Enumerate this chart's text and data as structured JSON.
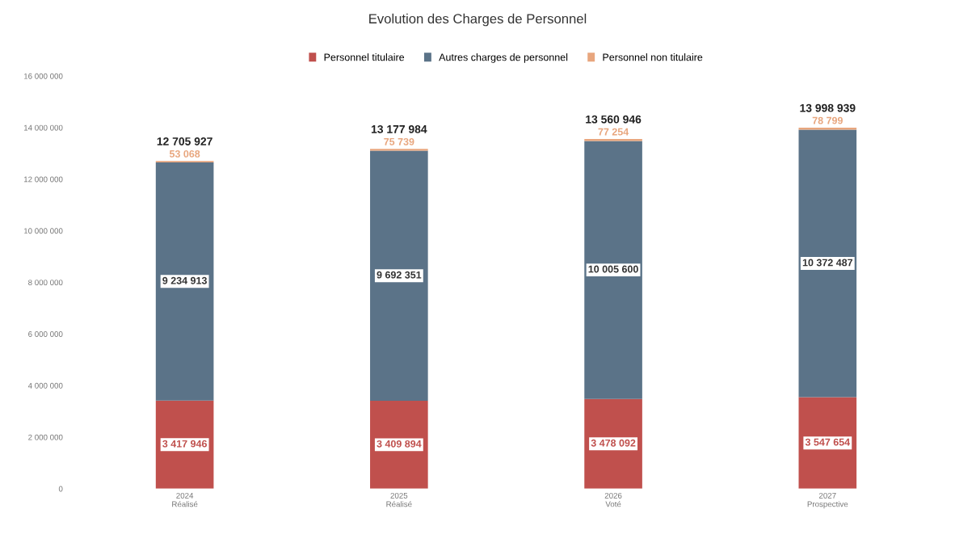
{
  "chart_data": {
    "type": "bar",
    "title": "Evolution des Charges de Personnel",
    "stacked": true,
    "categories": [
      "2024\nRéalisé",
      "2025\nRéalisé",
      "2026\nVoté",
      "2027\nProspective"
    ],
    "series": [
      {
        "name": "Personnel titulaire",
        "color": "#c0504d",
        "values": [
          3417946,
          3409894,
          3478092,
          3547654
        ],
        "value_labels": [
          "3 417 946",
          "3 409 894",
          "3 478 092",
          "3 547 654"
        ]
      },
      {
        "name": "Autres charges de personnel",
        "color": "#5b7388",
        "values": [
          9234913,
          9692351,
          10005600,
          10372487
        ],
        "value_labels": [
          "9 234 913",
          "9 692 351",
          "10 005 600",
          "10 372 487"
        ]
      },
      {
        "name": "Personnel non titulaire",
        "color": "#e8a67e",
        "values": [
          53068,
          75739,
          77254,
          78799
        ],
        "value_labels": [
          "53 068",
          "75 739",
          "77 254",
          "78 799"
        ]
      }
    ],
    "totals": [
      "12 705 927",
      "13 177 984",
      "13 560 946",
      "13 998 939"
    ],
    "ylim": [
      0,
      16000000
    ],
    "yticks": [
      {
        "value": 0,
        "label": "0"
      },
      {
        "value": 2000000,
        "label": "2 000 000"
      },
      {
        "value": 4000000,
        "label": "4 000 000"
      },
      {
        "value": 6000000,
        "label": "6 000 000"
      },
      {
        "value": 8000000,
        "label": "8 000 000"
      },
      {
        "value": 10000000,
        "label": "10 000 000"
      },
      {
        "value": 12000000,
        "label": "12 000 000"
      },
      {
        "value": 14000000,
        "label": "14 000 000"
      },
      {
        "value": 16000000,
        "label": "16 000 000"
      }
    ],
    "grid": false,
    "legend": "top"
  }
}
